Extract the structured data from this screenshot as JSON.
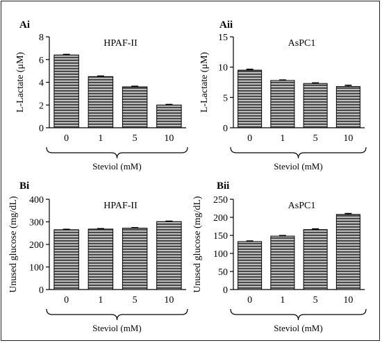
{
  "chart_data": [
    {
      "panel": "Ai",
      "type": "bar",
      "title": "HPAF-II",
      "ylabel": "L-Lactate (μM)",
      "xlabel": "Steviol (mM)",
      "categories": [
        "0",
        "1",
        "5",
        "10"
      ],
      "values": [
        6.4,
        4.5,
        3.6,
        2.0
      ],
      "errors": [
        0.05,
        0.05,
        0.05,
        0.05
      ],
      "ylim": [
        0,
        8
      ],
      "yticks": [
        "0",
        "2",
        "4",
        "6",
        "8"
      ]
    },
    {
      "panel": "Aii",
      "type": "bar",
      "title": "AsPC1",
      "ylabel": "L-Lactate (μM)",
      "xlabel": "Steviol (mM)",
      "categories": [
        "0",
        "1",
        "5",
        "10"
      ],
      "values": [
        9.5,
        7.8,
        7.3,
        6.8
      ],
      "errors": [
        0.15,
        0.08,
        0.1,
        0.2
      ],
      "ylim": [
        0,
        15
      ],
      "yticks": [
        "0",
        "5",
        "10",
        "15"
      ]
    },
    {
      "panel": "Bi",
      "type": "bar",
      "title": "HPAF-II",
      "ylabel": "Unused glucose (mg/dL)",
      "xlabel": "Steviol (mM)",
      "categories": [
        "0",
        "1",
        "5",
        "10"
      ],
      "values": [
        265,
        268,
        272,
        301
      ],
      "errors": [
        2,
        2,
        2,
        2
      ],
      "ylim": [
        0,
        400
      ],
      "yticks": [
        "0",
        "100",
        "200",
        "300",
        "400"
      ]
    },
    {
      "panel": "Bii",
      "type": "bar",
      "title": "AsPC1",
      "ylabel": "Unused glucose (mg/dL)",
      "xlabel": "Steviol (mM)",
      "categories": [
        "0",
        "1",
        "5",
        "10"
      ],
      "values": [
        133,
        148,
        166,
        208
      ],
      "errors": [
        1.5,
        1.5,
        2,
        2.5
      ],
      "ylim": [
        0,
        250
      ],
      "yticks": [
        "0",
        "50",
        "100",
        "150",
        "200",
        "250"
      ]
    }
  ],
  "style": {
    "bar_fill": "#4a4a4a",
    "stripe_color": "#d8d8d8",
    "axis_color": "#000000"
  }
}
